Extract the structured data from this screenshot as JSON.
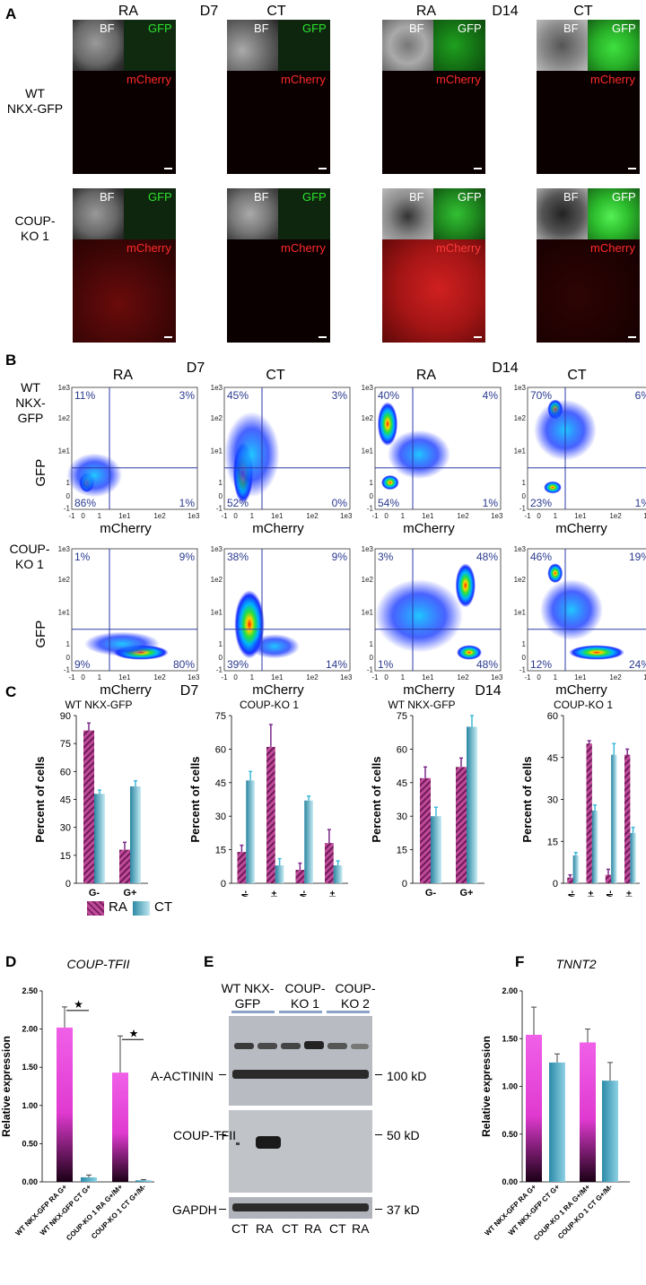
{
  "panels": {
    "A": "A",
    "B": "B",
    "C": "C",
    "D": "D",
    "E": "E",
    "F": "F"
  },
  "conditions": {
    "ra": "RA",
    "ct": "CT",
    "d7": "D7",
    "d14": "D14"
  },
  "rows": {
    "wt_l1": "WT",
    "wt_l2": "NKX-GFP",
    "ko_l1": "COUP-",
    "ko_l2": "KO 1"
  },
  "image_labels": {
    "bf": "BF",
    "gfp": "GFP",
    "mcherry": "mCherry"
  },
  "flow": {
    "xlabel": "mCherry",
    "ylabel": "GFP",
    "xticks": [
      "-1",
      "0",
      "1",
      "1e1",
      "1e2",
      "1e3"
    ],
    "yticks": [
      "1e3",
      "1e2",
      "1e1",
      "1",
      "0",
      "-1"
    ],
    "plots": [
      {
        "q": [
          "11%",
          "3%",
          "86%",
          "1%"
        ]
      },
      {
        "q": [
          "45%",
          "3%",
          "52%",
          "0%"
        ]
      },
      {
        "q": [
          "40%",
          "4%",
          "54%",
          "1%"
        ]
      },
      {
        "q": [
          "70%",
          "6%",
          "23%",
          "1%"
        ]
      },
      {
        "q": [
          "1%",
          "9%",
          "9%",
          "80%"
        ]
      },
      {
        "q": [
          "38%",
          "9%",
          "39%",
          "14%"
        ]
      },
      {
        "q": [
          "3%",
          "48%",
          "1%",
          "48%"
        ]
      },
      {
        "q": [
          "46%",
          "19%",
          "12%",
          "24%"
        ]
      }
    ]
  },
  "chart_data": [
    {
      "type": "bar",
      "title": "WT NKX-GFP",
      "ylabel": "Percent of cells",
      "ylim": [
        0,
        90
      ],
      "yticks": [
        0,
        15,
        30,
        45,
        60,
        75,
        90
      ],
      "categories": [
        "G-",
        "G+"
      ],
      "series": [
        {
          "name": "RA",
          "values": [
            82,
            18
          ],
          "err": [
            4,
            4
          ],
          "color": "#b03a8c"
        },
        {
          "name": "CT",
          "values": [
            48,
            52
          ],
          "err": [
            2,
            3
          ],
          "color": "#5fb8d0"
        }
      ]
    },
    {
      "type": "bar",
      "title": "COUP-KO 1",
      "ylabel": "Percent of cells",
      "ylim": [
        0,
        75
      ],
      "yticks": [
        0,
        15,
        30,
        45,
        60,
        75
      ],
      "categories": [
        "G-/M-",
        "G-/M+",
        "G+/M-",
        "G+/M+"
      ],
      "series": [
        {
          "name": "RA",
          "values": [
            14,
            61,
            6,
            18
          ],
          "err": [
            3,
            10,
            3,
            6
          ],
          "color": "#b03a8c"
        },
        {
          "name": "CT",
          "values": [
            46,
            8,
            37,
            8
          ],
          "err": [
            4,
            3,
            2,
            2
          ],
          "color": "#5fb8d0"
        }
      ]
    },
    {
      "type": "bar",
      "title": "WT NKX-GFP",
      "ylabel": "Percent of cells",
      "ylim": [
        0,
        75
      ],
      "yticks": [
        0,
        15,
        30,
        45,
        60,
        75
      ],
      "categories": [
        "G-",
        "G+"
      ],
      "series": [
        {
          "name": "RA",
          "values": [
            47,
            52
          ],
          "err": [
            5,
            4
          ],
          "color": "#b03a8c"
        },
        {
          "name": "CT",
          "values": [
            30,
            70
          ],
          "err": [
            4,
            5
          ],
          "color": "#5fb8d0"
        }
      ]
    },
    {
      "type": "bar",
      "title": "COUP-KO 1",
      "ylabel": "Percent of cells",
      "ylim": [
        0,
        60
      ],
      "yticks": [
        0,
        15,
        30,
        45,
        60
      ],
      "categories": [
        "G-/M-",
        "G-/M+",
        "G+/M-",
        "G+/M+"
      ],
      "series": [
        {
          "name": "RA",
          "values": [
            2,
            50,
            3,
            46
          ],
          "err": [
            1,
            1,
            2,
            2
          ],
          "color": "#b03a8c"
        },
        {
          "name": "CT",
          "values": [
            10,
            26,
            46,
            18
          ],
          "err": [
            1,
            2,
            4,
            2
          ],
          "color": "#5fb8d0"
        }
      ]
    },
    {
      "type": "bar",
      "title": "COUP-TFII",
      "ylabel": "Relative expression",
      "ylim": [
        0,
        2.5
      ],
      "yticks": [
        "0.00",
        "0.50",
        "1.00",
        "1.50",
        "2.00",
        "2.50"
      ],
      "categories": [
        "WT NKX-GFP RA G+",
        "WT NKX-GFP CT G+",
        "COUP-KO 1 RA G+/M+",
        "COUP-KO 1 CT G+/M-"
      ],
      "values": [
        2.02,
        0.06,
        1.43,
        0.02
      ],
      "err": [
        0.27,
        0.03,
        0.48,
        0.01
      ],
      "significance": "*"
    },
    {
      "type": "bar",
      "title": "TNNT2",
      "ylabel": "Relative expression",
      "ylim": [
        0,
        2.0
      ],
      "yticks": [
        "0.00",
        "0.50",
        "1.00",
        "1.50",
        "2.00"
      ],
      "categories": [
        "WT NKX-GFP RA G+",
        "WT NKX-GFP CT G+",
        "COUP-KO 1 RA G+/M+",
        "COUP-KO 1 CT G+/M-"
      ],
      "values": [
        1.54,
        1.25,
        1.46,
        1.06
      ],
      "err": [
        0.29,
        0.09,
        0.14,
        0.19
      ]
    }
  ],
  "legend": {
    "ra": "RA",
    "ct": "CT"
  },
  "blot": {
    "groups": [
      {
        "l1": "WT NKX-",
        "l2": "GFP"
      },
      {
        "l1": "COUP-",
        "l2": "KO 1"
      },
      {
        "l1": "COUP-",
        "l2": "KO 2"
      }
    ],
    "rows": [
      "A-ACTININ",
      "COUP-TFII",
      "GAPDH"
    ],
    "sizes": [
      "100 kD",
      "50 kD",
      "37 kD"
    ],
    "lanes": [
      "CT",
      "RA",
      "CT",
      "RA",
      "CT",
      "RA"
    ]
  },
  "significance": "★"
}
